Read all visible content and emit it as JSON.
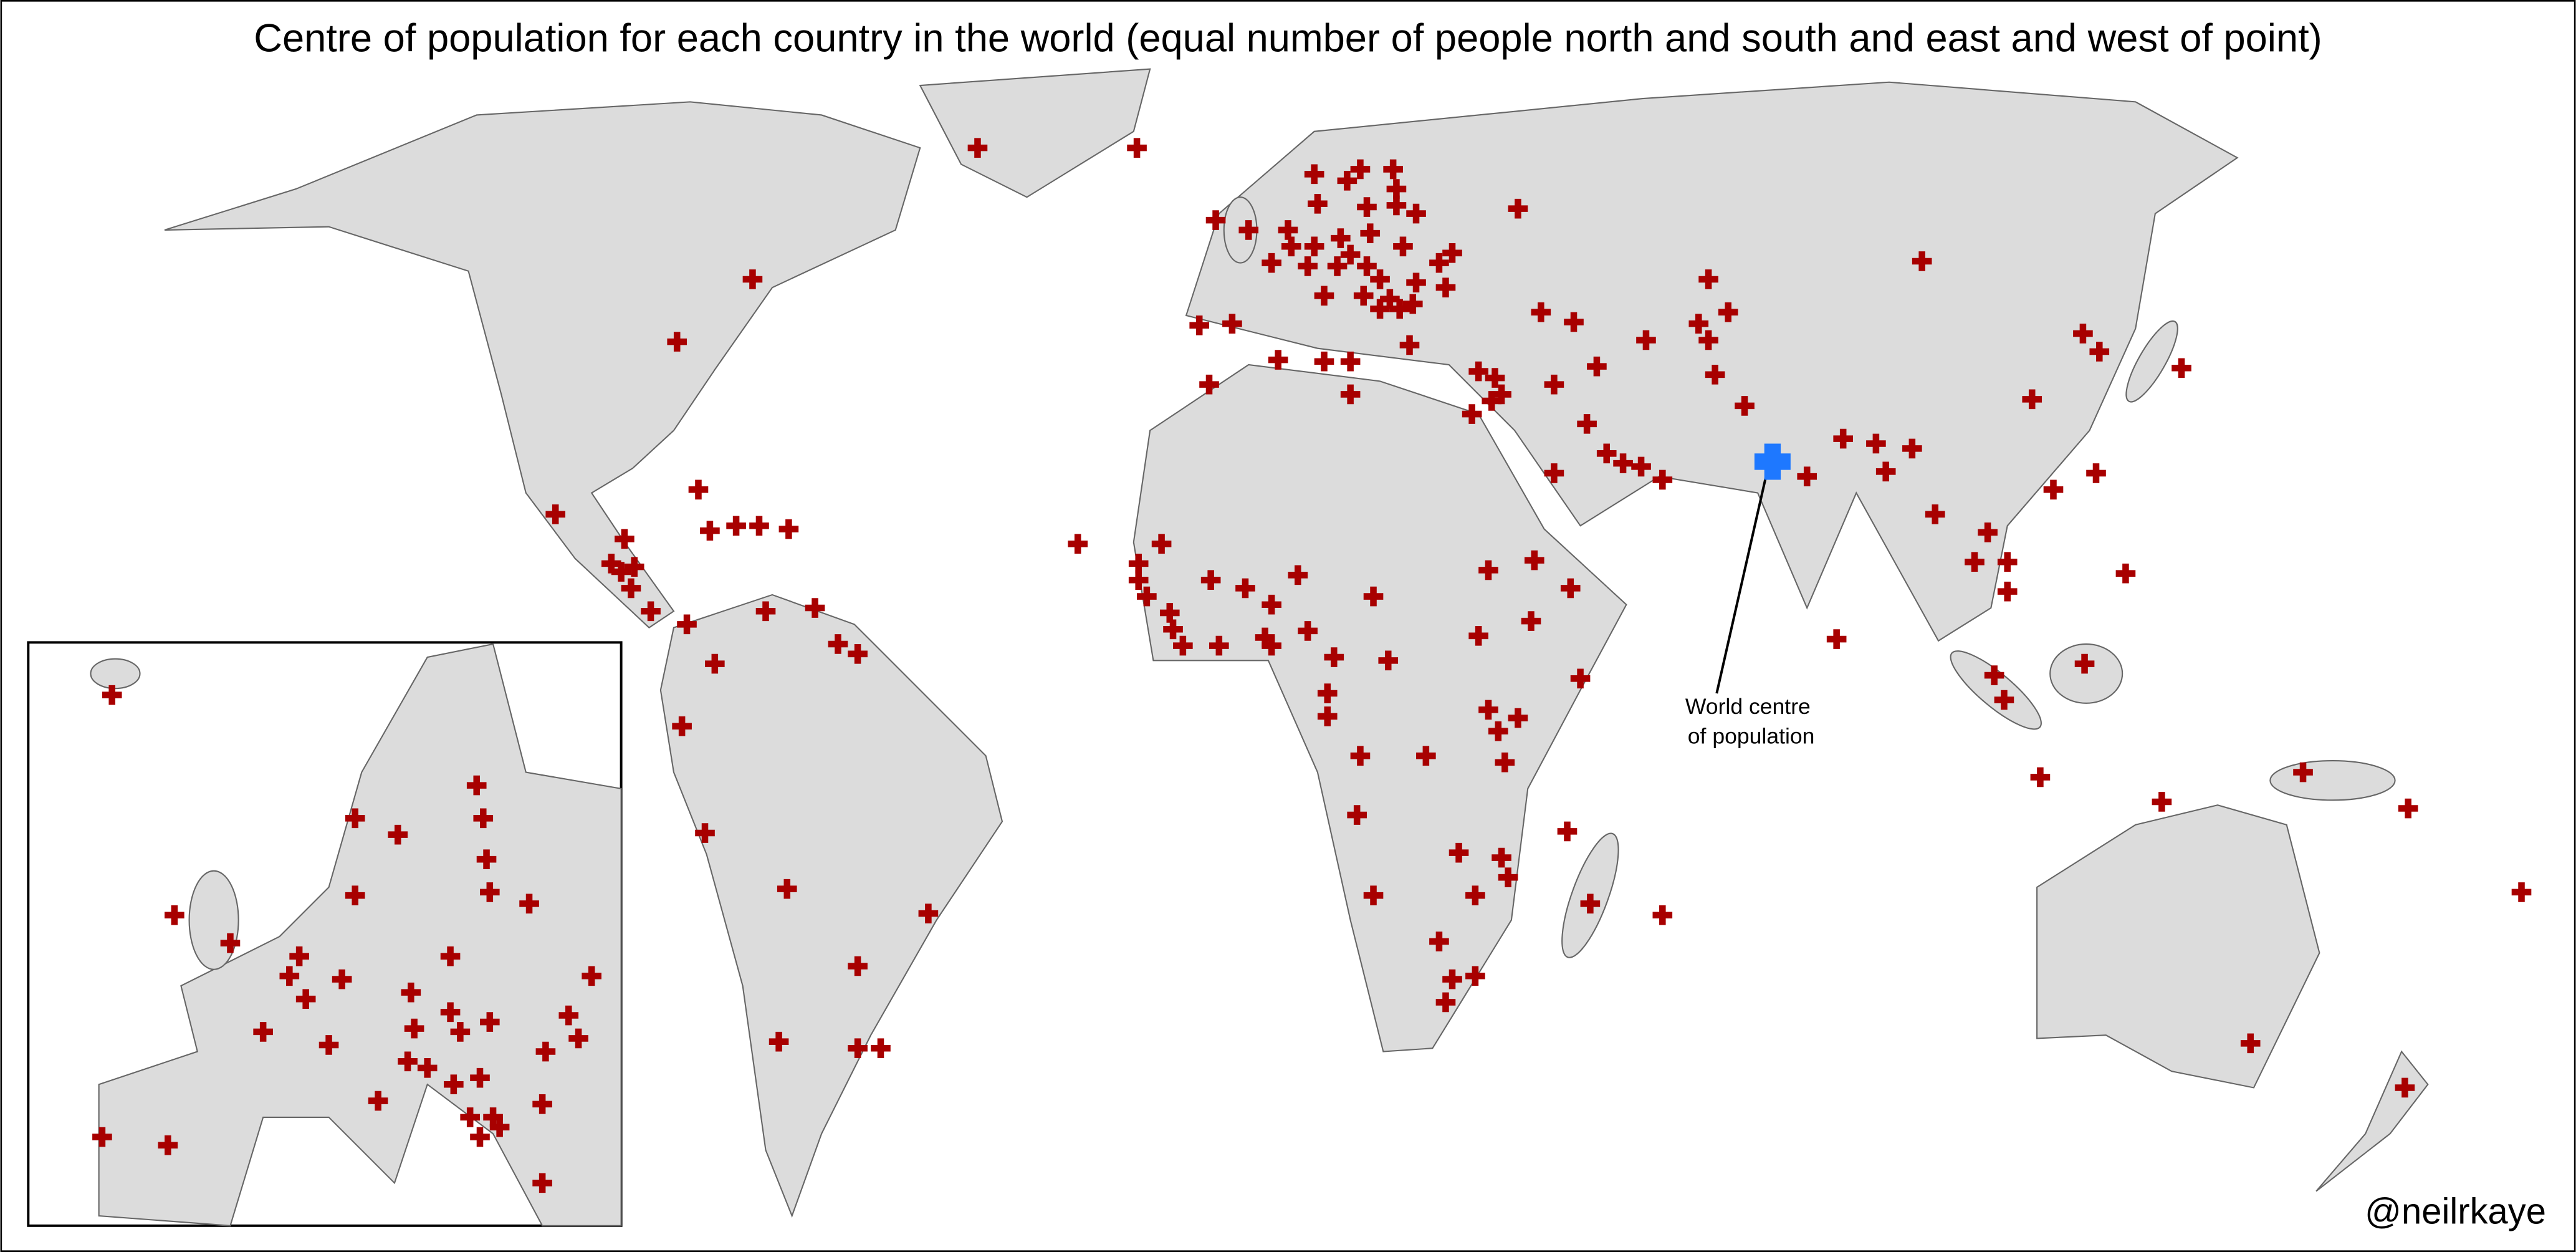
{
  "title": "Centre of population for each country in the world (equal number of people north and south and east and west of point)",
  "annotation": [
    "World centre",
    "of population"
  ],
  "credit": "@neilrkaye"
}
